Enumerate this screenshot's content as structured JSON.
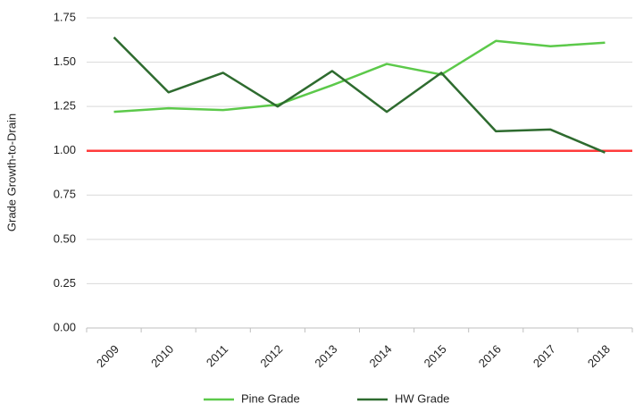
{
  "chart_data": {
    "type": "line",
    "y_label": "Grade Growth-to-Drain",
    "categories": [
      "2009",
      "2010",
      "2011",
      "2012",
      "2013",
      "2014",
      "2015",
      "2016",
      "2017",
      "2018"
    ],
    "series": [
      {
        "name": "Pine Grade",
        "color": "#5cc94a",
        "values": [
          1.22,
          1.24,
          1.23,
          1.26,
          1.37,
          1.49,
          1.43,
          1.62,
          1.59,
          1.61
        ]
      },
      {
        "name": "HW Grade",
        "color": "#2e6b2f",
        "values": [
          1.64,
          1.33,
          1.44,
          1.25,
          1.45,
          1.22,
          1.44,
          1.11,
          1.12,
          0.99
        ]
      }
    ],
    "reference_line": {
      "value": 1,
      "color": "#ff3b3b"
    },
    "ylim": [
      0,
      1.75
    ],
    "yticks": [
      {
        "value": 0,
        "label": "0.00"
      },
      {
        "value": 0.25,
        "label": "0.25"
      },
      {
        "value": 0.5,
        "label": "0.50"
      },
      {
        "value": 0.75,
        "label": "0.75"
      },
      {
        "value": 1,
        "label": "1.00"
      },
      {
        "value": 1.25,
        "label": "1.25"
      },
      {
        "value": 1.5,
        "label": "1.50"
      },
      {
        "value": 1.75,
        "label": "1.75"
      }
    ],
    "grid": true,
    "legend": "bottom"
  }
}
